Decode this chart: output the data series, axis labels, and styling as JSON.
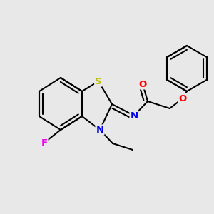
{
  "background_color": "#e8e8e8",
  "atom_colors": {
    "C": "#000000",
    "N": "#0000ee",
    "O": "#ff0000",
    "S": "#bbbb00",
    "F": "#ee00ee"
  },
  "bond_color": "#000000",
  "bond_width": 1.5,
  "figsize": [
    3.0,
    3.0
  ],
  "dpi": 100
}
